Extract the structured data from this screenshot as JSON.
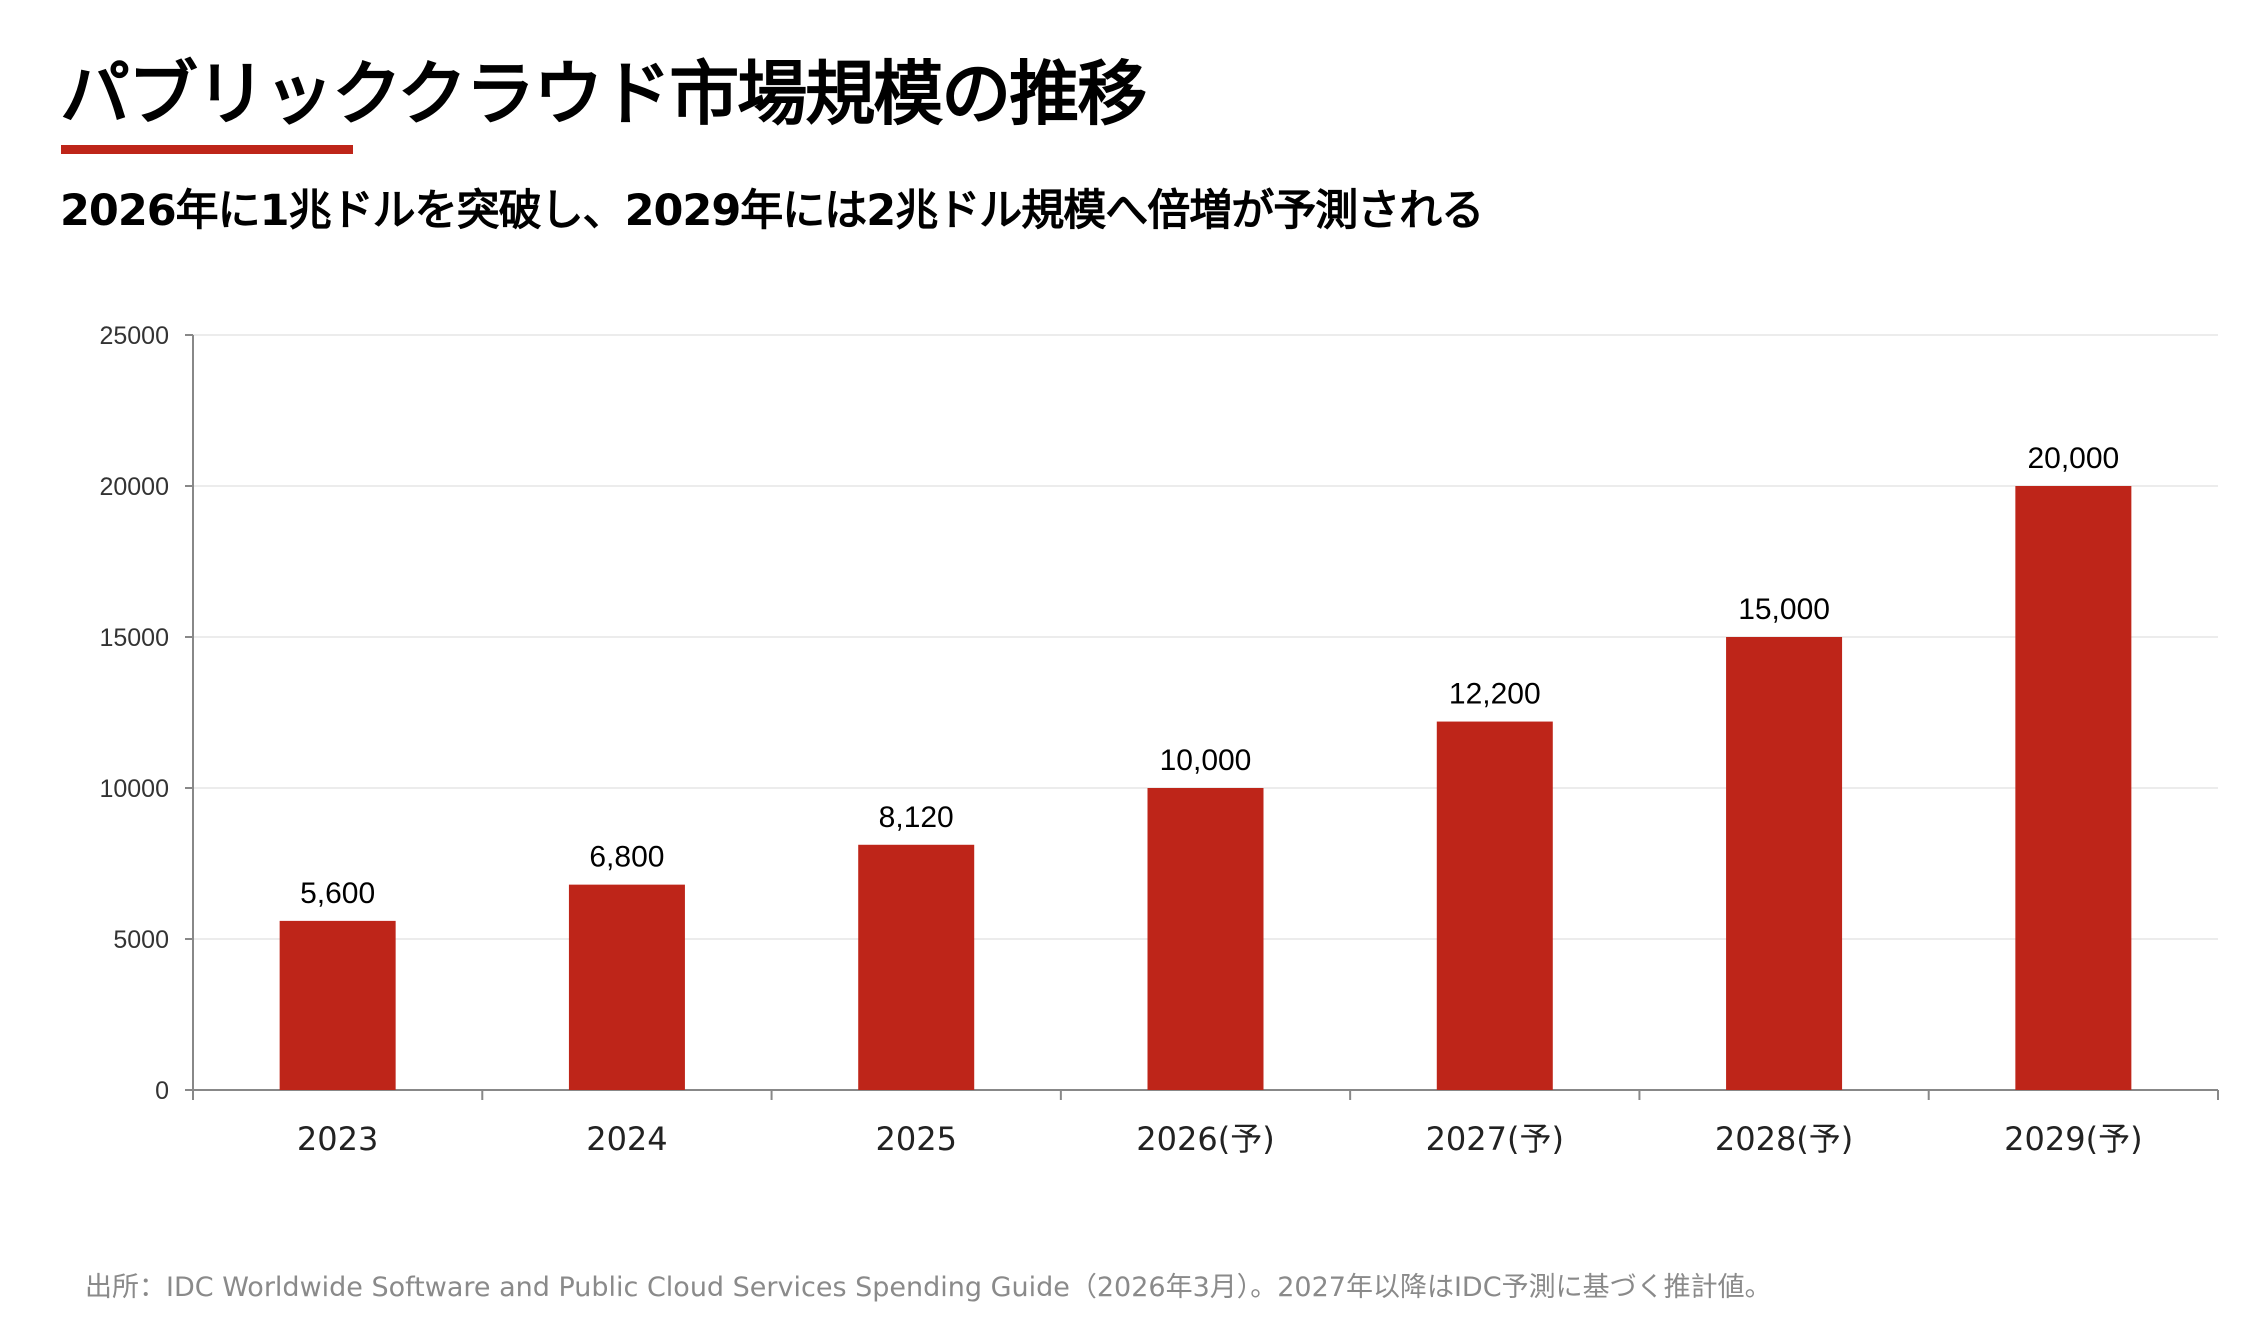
{
  "header": {
    "title": "パブリッククラウド市場規模の推移",
    "subtitle": "2026年に1兆ドルを突破し、2029年には2兆ドル規模へ倍増が予測される"
  },
  "colors": {
    "accent": "#BE2519",
    "bar": "#BE2519",
    "grid": "#E6E6E6",
    "axis": "#888888"
  },
  "chart_data": {
    "type": "bar",
    "categories": [
      "2023",
      "2024",
      "2025",
      "2026(予)",
      "2027(予)",
      "2028(予)",
      "2029(予)"
    ],
    "values": [
      5600,
      6800,
      8120,
      10000,
      12200,
      15000,
      20000
    ],
    "data_labels": [
      "5,600",
      "6,800",
      "8,120",
      "10,000",
      "12,200",
      "15,000",
      "20,000"
    ],
    "ylim": [
      0,
      25000
    ],
    "yticks": [
      "0",
      "5000",
      "10000",
      "15000",
      "20000",
      "25000"
    ],
    "grid": true,
    "title": "",
    "xlabel": "",
    "ylabel": ""
  },
  "footer": {
    "source": "出所：IDC Worldwide Software and Public Cloud Services Spending Guide（2026年3月）。2027年以降はIDC予測に基づく推計値。"
  }
}
